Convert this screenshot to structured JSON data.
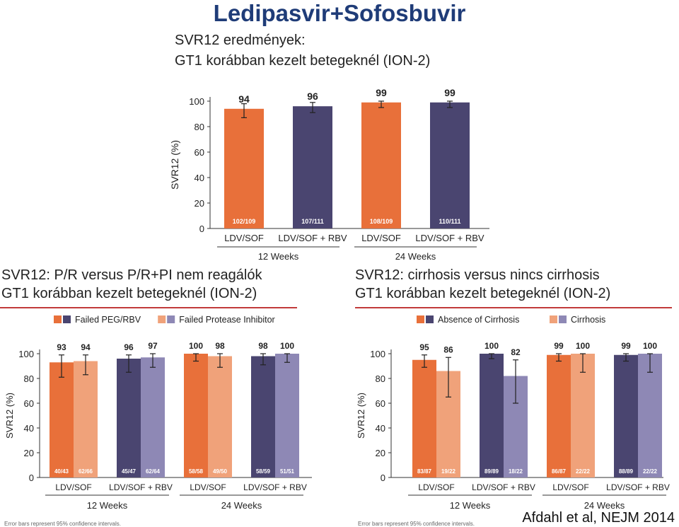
{
  "title": "Ledipasvir+Sofosbuvir",
  "credit": "Afdahl et al, NEJM 2014",
  "panels": {
    "top": {
      "subtitle1": "SVR12 eredmények:",
      "subtitle2": "GT1 korábban kezelt betegeknél (ION-2)"
    },
    "left": {
      "subtitle1": "SVR12: P/R versus P/R+PI nem reagálók",
      "subtitle2": "GT1 korábban kezelt betegeknél (ION-2)",
      "footnote": "Error bars represent 95% confidence intervals."
    },
    "right": {
      "subtitle1": "SVR12: cirrhosis versus nincs cirrhosis",
      "subtitle2": "GT1 korábban kezelt betegeknél (ION-2)",
      "footnote": "Error bars represent 95% confidence intervals."
    }
  },
  "colors": {
    "orange": "#e8703a",
    "navy": "#4a4570",
    "light_orange": "#f0a27a",
    "lavender": "#8e88b5",
    "title_blue": "#1f3c78",
    "rule_red": "#c23b3b"
  },
  "chart_data": [
    {
      "type": "bar",
      "ylabel": "SVR12 (%)",
      "ylim": [
        0,
        100
      ],
      "yticks": [
        0,
        20,
        40,
        60,
        80,
        100
      ],
      "categories": [
        "LDV/SOF",
        "LDV/SOF + RBV",
        "LDV/SOF",
        "LDV/SOF + RBV"
      ],
      "groups": [
        "12 Weeks",
        "24 Weeks"
      ],
      "values": [
        94,
        96,
        99,
        99
      ],
      "errors": [
        [
          87,
          98
        ],
        [
          91,
          99
        ],
        [
          95,
          100
        ],
        [
          95,
          100
        ]
      ],
      "counts": [
        "102/109",
        "107/111",
        "108/109",
        "110/111"
      ],
      "bar_colors": [
        "orange",
        "navy",
        "orange",
        "navy"
      ]
    },
    {
      "type": "bar",
      "ylabel": "SVR12 (%)",
      "ylim": [
        0,
        100
      ],
      "yticks": [
        0,
        20,
        40,
        60,
        80,
        100
      ],
      "categories": [
        "LDV/SOF",
        "LDV/SOF + RBV",
        "LDV/SOF",
        "LDV/SOF + RBV"
      ],
      "groups": [
        "12 Weeks",
        "24 Weeks"
      ],
      "legend_position": "top",
      "series": [
        {
          "name": "Failed PEG/RBV",
          "values": [
            93,
            96,
            100,
            98
          ],
          "errors": [
            [
              81,
              99
            ],
            [
              85,
              99
            ],
            [
              94,
              100
            ],
            [
              91,
              100
            ]
          ],
          "counts": [
            "40/43",
            "45/47",
            "58/58",
            "58/59"
          ],
          "colors": [
            "orange",
            "navy",
            "orange",
            "navy"
          ]
        },
        {
          "name": "Failed Protease Inhibitor",
          "values": [
            94,
            97,
            98,
            100
          ],
          "errors": [
            [
              83,
              99
            ],
            [
              89,
              100
            ],
            [
              89,
              100
            ],
            [
              93,
              100
            ]
          ],
          "counts": [
            "62/66",
            "62/64",
            "49/50",
            "51/51"
          ],
          "colors": [
            "light_orange",
            "lavender",
            "light_orange",
            "lavender"
          ]
        }
      ]
    },
    {
      "type": "bar",
      "ylabel": "SVR12 (%)",
      "ylim": [
        0,
        100
      ],
      "yticks": [
        0,
        20,
        40,
        60,
        80,
        100
      ],
      "categories": [
        "LDV/SOF",
        "LDV/SOF + RBV",
        "LDV/SOF",
        "LDV/SOF + RBV"
      ],
      "groups": [
        "12 Weeks",
        "24 Weeks"
      ],
      "legend_position": "top",
      "series": [
        {
          "name": "Absence of Cirrhosis",
          "values": [
            95,
            100,
            99,
            99
          ],
          "errors": [
            [
              89,
              99
            ],
            [
              96,
              100
            ],
            [
              94,
              100
            ],
            [
              94,
              100
            ]
          ],
          "counts": [
            "83/87",
            "89/89",
            "86/87",
            "88/89"
          ],
          "colors": [
            "orange",
            "navy",
            "orange",
            "navy"
          ]
        },
        {
          "name": "Cirrhosis",
          "values": [
            86,
            82,
            100,
            100
          ],
          "errors": [
            [
              65,
              97
            ],
            [
              60,
              95
            ],
            [
              85,
              100
            ],
            [
              85,
              100
            ]
          ],
          "counts": [
            "19/22",
            "18/22",
            "22/22",
            "22/22"
          ],
          "colors": [
            "light_orange",
            "lavender",
            "light_orange",
            "lavender"
          ]
        }
      ]
    }
  ]
}
